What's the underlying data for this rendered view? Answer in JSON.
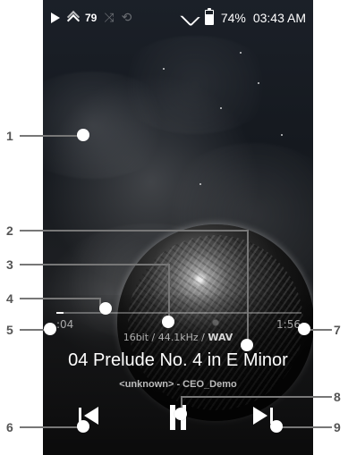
{
  "status_bar": {
    "volume": "79",
    "battery": "74%",
    "time": "03:43 AM"
  },
  "player": {
    "time_current": ":04",
    "time_total": "1:56",
    "format_prefix": "16bit / 44.1kHz / ",
    "format_suffix": "WAV",
    "title": "04 Prelude No. 4 in E Minor",
    "subtitle": "<unknown> - CEO_Demo"
  },
  "callouts": {
    "labels": [
      "1",
      "2",
      "3",
      "4",
      "5",
      "6",
      "7",
      "8",
      "9"
    ]
  },
  "colors": {
    "background": "#0b0e12",
    "text_primary": "#ffffff",
    "text_secondary": "#9aa0a6",
    "callout_line": "#777777"
  },
  "icons": {
    "play": "play-icon",
    "volume": "volume-icon",
    "shuffle": "shuffle-icon",
    "repeat": "repeat-icon",
    "wifi": "wifi-icon",
    "battery": "battery-icon",
    "previous": "previous-track-icon",
    "pause": "pause-icon",
    "next": "next-track-icon"
  }
}
